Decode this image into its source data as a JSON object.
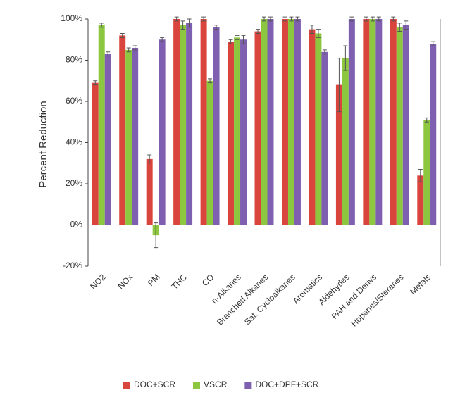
{
  "chart_data": {
    "type": "bar",
    "y_label": "Percent Reduction",
    "categories": [
      "NO2",
      "NOx",
      "PM",
      "THC",
      "CO",
      "n-Alkanes",
      "Branched Alkanes",
      "Sat. Cycloalkanes",
      "Aromatics",
      "Aldehydes",
      "PAH and Derivs",
      "Hopanes/Steranes",
      "Metals"
    ],
    "series": [
      {
        "name": "DOC+SCR",
        "color": "#d9453d",
        "values": [
          69,
          92,
          32,
          100,
          100,
          89,
          94,
          100,
          95,
          68,
          100,
          100,
          24
        ],
        "errors": [
          1,
          1,
          2,
          1,
          1,
          1,
          1,
          1,
          2,
          13,
          1,
          1,
          3
        ]
      },
      {
        "name": "VSCR",
        "color": "#8dc63f",
        "values": [
          97,
          85,
          -5,
          97,
          70,
          91,
          100,
          100,
          93,
          81,
          100,
          96,
          51
        ],
        "errors": [
          1,
          1,
          6,
          2,
          1,
          1,
          1,
          1,
          2,
          6,
          1,
          2,
          1
        ]
      },
      {
        "name": "DOC+DPF+SCR",
        "color": "#7f5fb0",
        "values": [
          83,
          86,
          90,
          98,
          96,
          90,
          100,
          100,
          84,
          100,
          100,
          97,
          88
        ],
        "errors": [
          1,
          1,
          1,
          2,
          1,
          2,
          1,
          1,
          1,
          1,
          1,
          2,
          1
        ]
      }
    ],
    "ylim": [
      -20,
      100
    ],
    "yticks": [
      {
        "value": -20,
        "label": "-20%"
      },
      {
        "value": 0,
        "label": "0%"
      },
      {
        "value": 20,
        "label": "20%"
      },
      {
        "value": 40,
        "label": "40%"
      },
      {
        "value": 60,
        "label": "60%"
      },
      {
        "value": 80,
        "label": "80%"
      },
      {
        "value": 100,
        "label": "100%"
      }
    ],
    "grid": false,
    "legend": "bottom"
  }
}
